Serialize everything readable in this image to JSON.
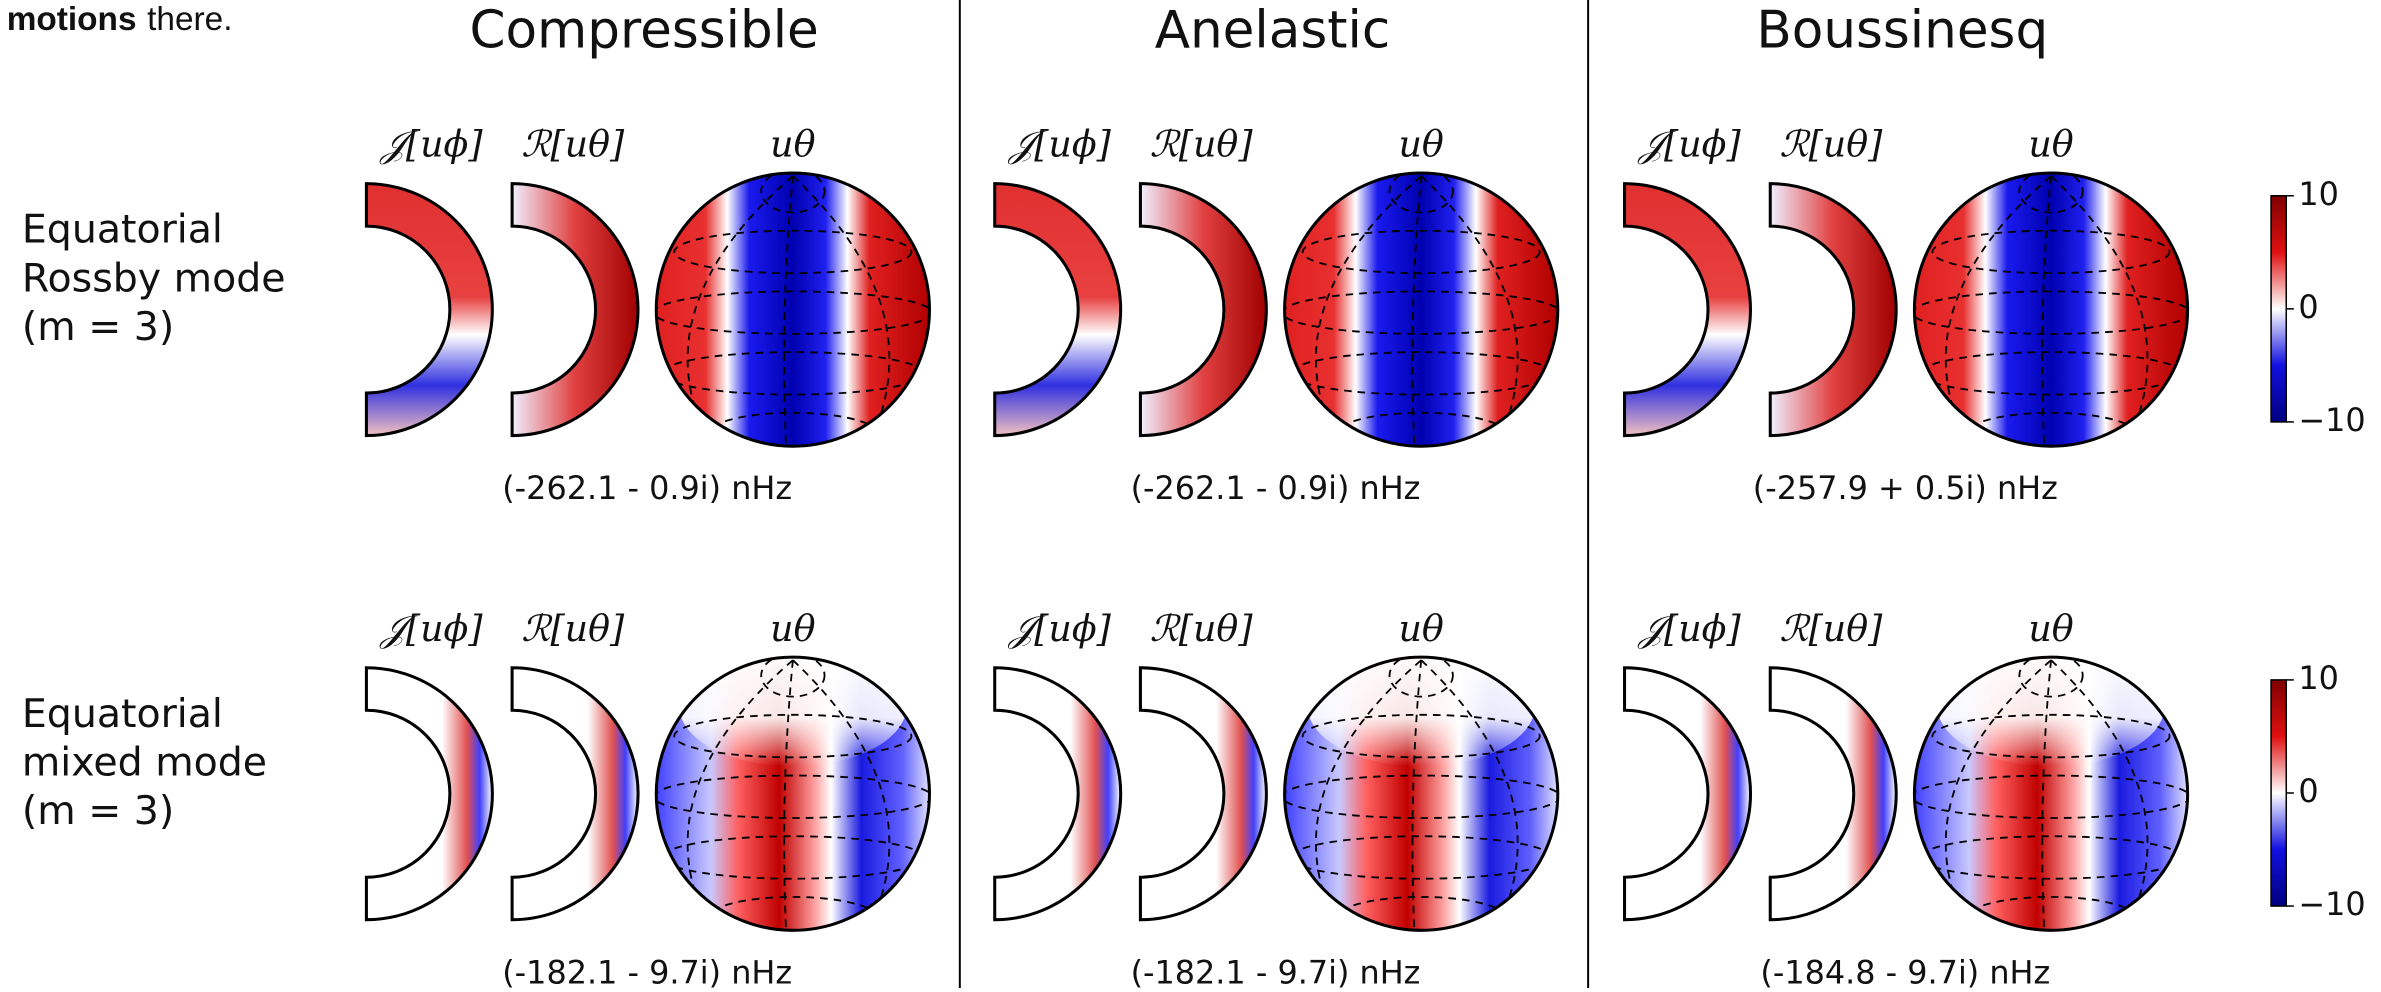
{
  "intro": {
    "bold": "motions",
    "rest": "there."
  },
  "columns": [
    {
      "title": "Compressible"
    },
    {
      "title": "Anelastic"
    },
    {
      "title": "Boussinesq"
    }
  ],
  "panel_labels": [
    "𝒥[uϕ]",
    "ℛ[uθ]",
    "uθ"
  ],
  "rows": [
    {
      "label": [
        "Equatorial",
        "Rossby mode",
        "(m = 3)"
      ],
      "frequencies": [
        "(-262.1 - 0.9i) nHz",
        "(-262.1 - 0.9i) nHz",
        "(-257.9 + 0.5i) nHz"
      ],
      "colorbar_ticks": [
        10,
        0,
        {
          "value": -10,
          "label": "−10"
        }
      ]
    },
    {
      "label": [
        "Equatorial",
        "mixed mode",
        "(m = 3)"
      ],
      "frequencies": [
        "(-182.1 - 9.7i) nHz",
        "(-182.1 - 9.7i) nHz",
        "(-184.8 - 9.7i) nHz"
      ],
      "colorbar_ticks": [
        10,
        0,
        {
          "value": -10,
          "label": "−10"
        }
      ]
    }
  ]
}
